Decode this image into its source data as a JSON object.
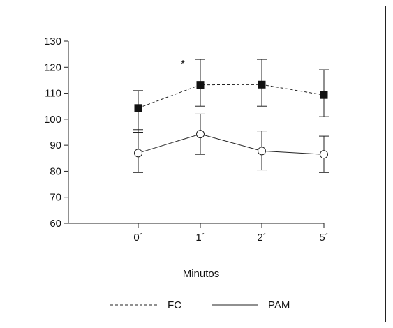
{
  "chart_data": {
    "type": "line",
    "categories": [
      "0´",
      "1´",
      "2´",
      "5´"
    ],
    "xlabel": "Minutos",
    "ylabel": "",
    "ylim": [
      60,
      130
    ],
    "yticks": [
      60,
      70,
      80,
      90,
      100,
      110,
      120,
      130
    ],
    "grid": false,
    "legend_position": "bottom",
    "annotation": "*",
    "series": [
      {
        "name": "FC",
        "line_style": "dashed",
        "marker": "filled-square",
        "values": [
          104.3,
          113.2,
          113.3,
          109.3
        ],
        "error_low": [
          95,
          105,
          105,
          101
        ],
        "error_high": [
          111,
          123,
          123,
          119
        ]
      },
      {
        "name": "PAM",
        "line_style": "solid",
        "marker": "open-circle",
        "values": [
          87.0,
          94.3,
          87.8,
          86.5
        ],
        "error_low": [
          79.5,
          86.5,
          80.5,
          79.5
        ],
        "error_high": [
          96,
          102,
          95.5,
          93.5
        ]
      }
    ],
    "colors": {
      "line": "#222222",
      "marker_fill": "#111111",
      "open_marker_fill": "#ffffff"
    }
  }
}
